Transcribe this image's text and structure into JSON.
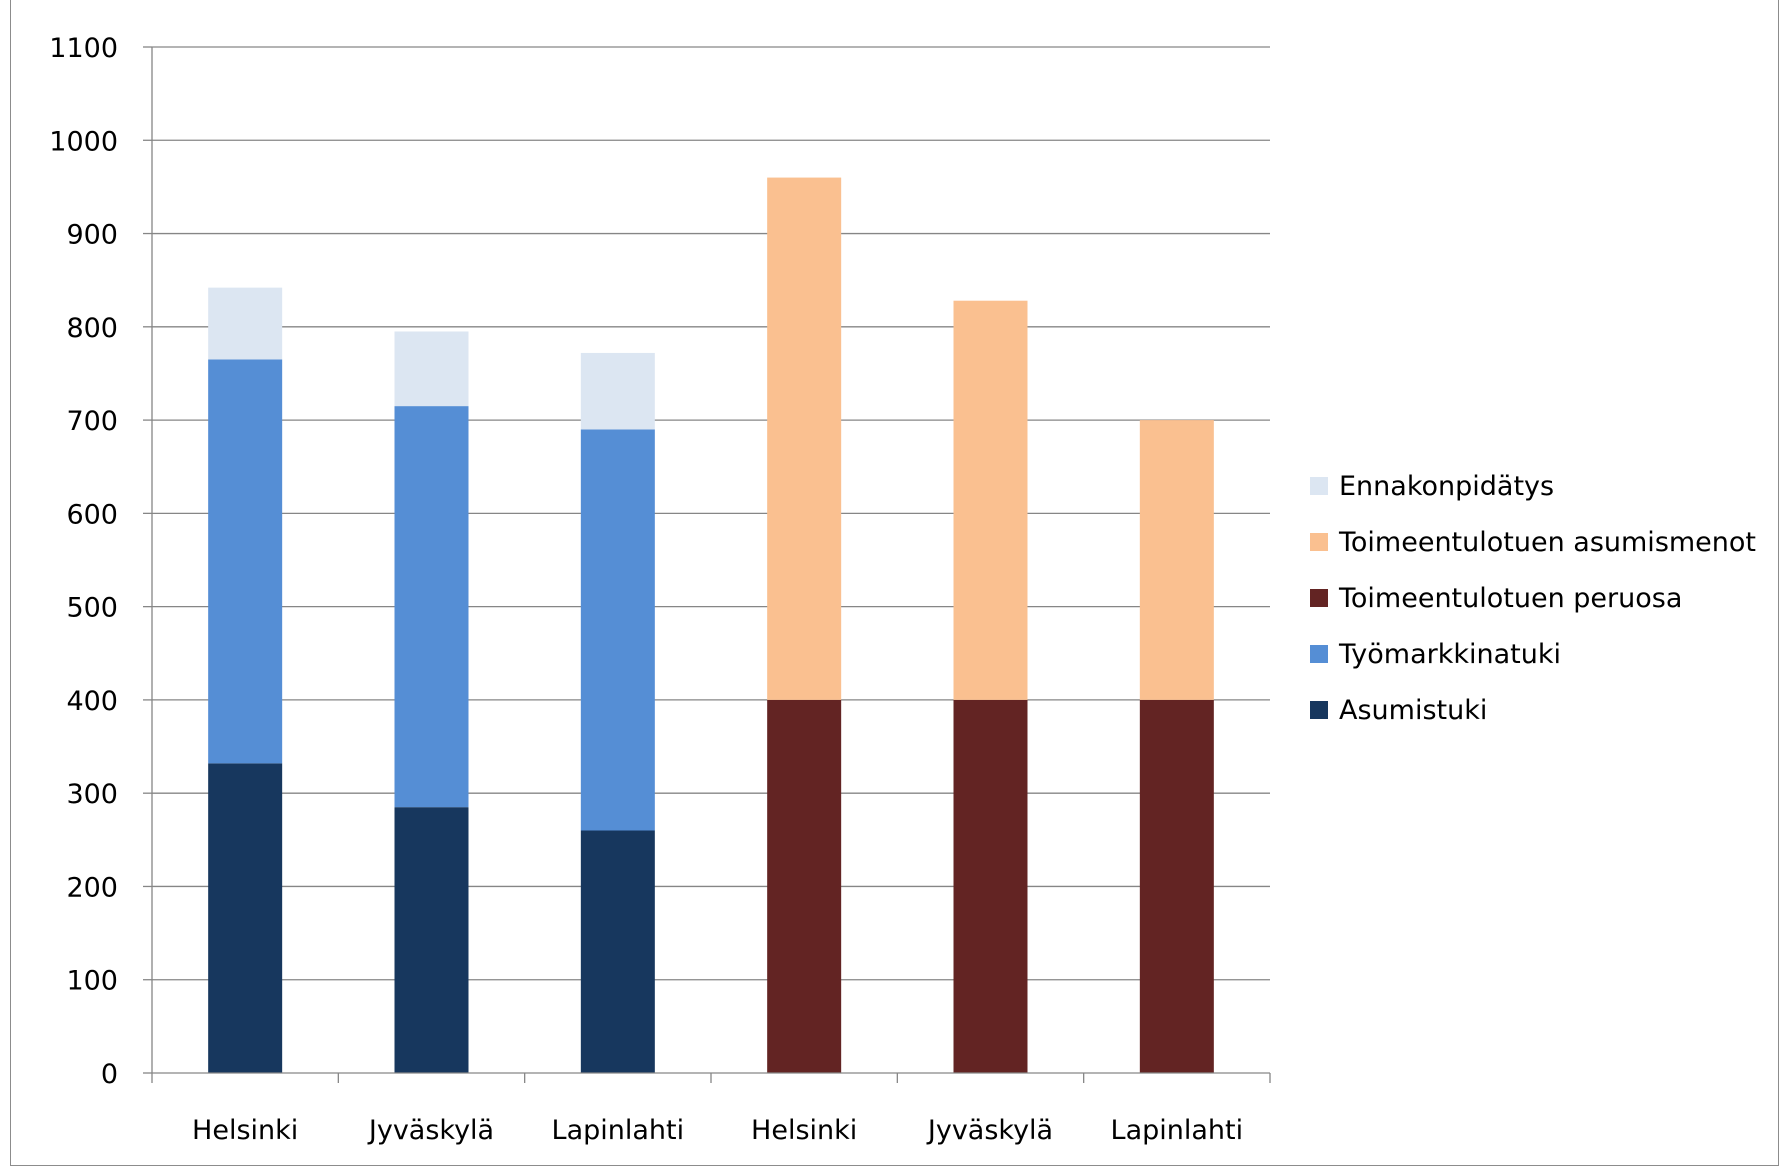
{
  "chart_data": {
    "type": "bar",
    "stacked": true,
    "title": "",
    "xlabel": "",
    "ylabel": "",
    "ylim": [
      0,
      1100
    ],
    "yticks": [
      0,
      100,
      200,
      300,
      400,
      500,
      600,
      700,
      800,
      900,
      1000,
      1100
    ],
    "grid": true,
    "legend_position": "right",
    "categories": [
      "Helsinki",
      "Jyväskylä",
      "Lapinlahti",
      "Helsinki",
      "Jyväskylä",
      "Lapinlahti"
    ],
    "series": [
      {
        "name": "Asumistuki",
        "color": "#17375e",
        "values": [
          332,
          285,
          260,
          0,
          0,
          0
        ]
      },
      {
        "name": "Työmarkkinatuki",
        "color": "#558ed5",
        "values": [
          433,
          430,
          430,
          0,
          0,
          0
        ]
      },
      {
        "name": "Toimeentulotuen peruosa",
        "color": "#632423",
        "values": [
          0,
          0,
          0,
          400,
          400,
          400
        ]
      },
      {
        "name": "Toimeentulotuen asumismenot",
        "color": "#fac090",
        "values": [
          0,
          0,
          0,
          560,
          428,
          300
        ]
      },
      {
        "name": "Ennakonpidätys",
        "color": "#dce6f2",
        "values": [
          77,
          80,
          82,
          0,
          0,
          0
        ]
      }
    ],
    "legend_order": [
      "Ennakonpidätys",
      "Toimeentulotuen asumismenot",
      "Toimeentulotuen peruosa",
      "Työmarkkinatuki",
      "Asumistuki"
    ]
  }
}
